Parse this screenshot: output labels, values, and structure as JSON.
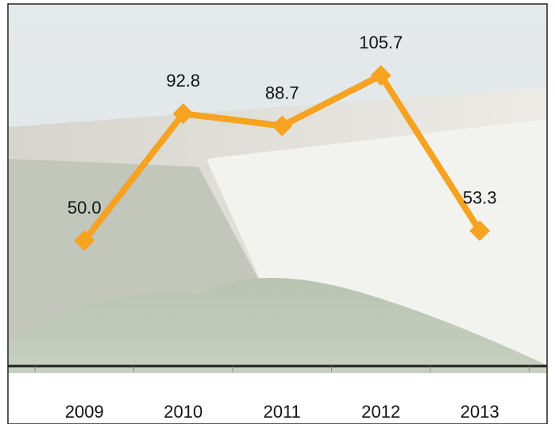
{
  "chart_data": {
    "type": "line",
    "categories": [
      "2009",
      "2010",
      "2011",
      "2012",
      "2013"
    ],
    "values": [
      50.0,
      92.8,
      88.7,
      105.7,
      53.3
    ],
    "value_labels": [
      "50.0",
      "92.8",
      "88.7",
      "105.7",
      "53.3"
    ],
    "color": "#f5a320"
  }
}
